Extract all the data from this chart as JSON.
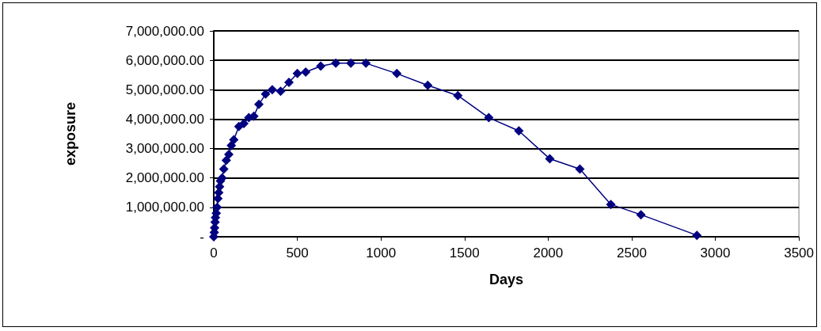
{
  "chart_data": {
    "type": "line",
    "xlabel": "Days",
    "ylabel": "exposure",
    "x": [
      0,
      3,
      5,
      8,
      10,
      15,
      20,
      25,
      30,
      35,
      40,
      50,
      60,
      75,
      90,
      105,
      120,
      150,
      180,
      210,
      240,
      270,
      310,
      350,
      400,
      450,
      500,
      550,
      640,
      730,
      820,
      910,
      1095,
      1280,
      1460,
      1645,
      1825,
      2010,
      2190,
      2375,
      2555,
      2890
    ],
    "series": [
      {
        "color": "#000080",
        "values": [
          0,
          150000,
          300000,
          500000,
          650000,
          800000,
          1000000,
          1300000,
          1500000,
          1700000,
          1900000,
          2000000,
          2300000,
          2600000,
          2800000,
          3100000,
          3300000,
          3750000,
          3850000,
          4050000,
          4100000,
          4500000,
          4850000,
          5000000,
          4950000,
          5250000,
          5550000,
          5600000,
          5800000,
          5900000,
          5900000,
          5900000,
          5550000,
          5150000,
          4800000,
          4050000,
          3600000,
          2650000,
          2300000,
          1100000,
          750000,
          50000
        ]
      }
    ],
    "xlim": [
      0,
      3500
    ],
    "xticks": [
      0,
      500,
      1000,
      1500,
      2000,
      2500,
      3000,
      3500
    ],
    "ylim": [
      0,
      7000000
    ],
    "yticks": [
      {
        "value": 0,
        "label": "-"
      },
      {
        "value": 1000000,
        "label": "1,000,000.00"
      },
      {
        "value": 2000000,
        "label": "2,000,000.00"
      },
      {
        "value": 3000000,
        "label": "3,000,000.00"
      },
      {
        "value": 4000000,
        "label": "4,000,000.00"
      },
      {
        "value": 5000000,
        "label": "5,000,000.00"
      },
      {
        "value": 6000000,
        "label": "6,000,000.00"
      },
      {
        "value": 7000000,
        "label": "7,000,000.00"
      }
    ],
    "grid": "y",
    "marker": "diamond",
    "line_style": "solid"
  }
}
